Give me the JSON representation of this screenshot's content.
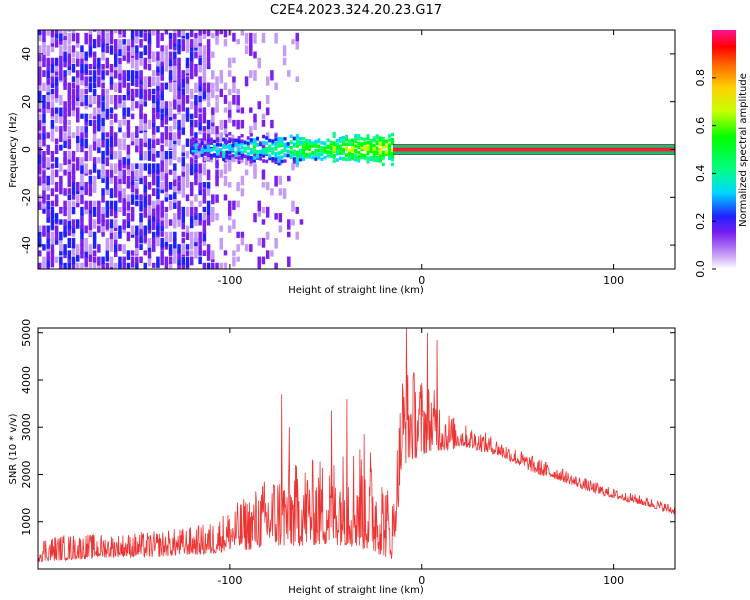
{
  "title": "C2E4.2023.324.20.23.G17",
  "chart_data": [
    {
      "type": "heatmap",
      "xlabel": "Height of straight line (km)",
      "ylabel": "Frequency (Hz)",
      "xlim": [
        -200,
        132
      ],
      "ylim": [
        -50,
        50
      ],
      "xticks": [
        -100,
        0,
        100
      ],
      "yticks": [
        -40,
        -20,
        0,
        20,
        40
      ],
      "colorbar": {
        "label": "Normalized spectral amplitude",
        "range": [
          0,
          1
        ],
        "ticks": [
          "0.0",
          "0.2",
          "0.4",
          "0.6",
          "0.8"
        ],
        "colors": [
          "#ffffff",
          "#c59cf5",
          "#7a1ff0",
          "#2020ff",
          "#00d8ff",
          "#00ff80",
          "#00ff00",
          "#c8ff00",
          "#ffd000",
          "#ff6000",
          "#ff0000",
          "#ff1493"
        ]
      },
      "noise_region_x": [
        -200,
        -110
      ],
      "signal_onset_x": -120,
      "signal_solid_from_x": -15,
      "signal_frequency": 0,
      "grid": false
    },
    {
      "type": "line",
      "xlabel": "Height of straight line (km)",
      "ylabel": "SNR (10 * v/v)",
      "xlim": [
        -200,
        132
      ],
      "ylim": [
        0,
        5100
      ],
      "xticks": [
        -100,
        0,
        100
      ],
      "yticks": [
        1000,
        2000,
        3000,
        4000,
        5000
      ],
      "color": "#ee3333",
      "envelope": {
        "x": [
          -200,
          -180,
          -160,
          -140,
          -120,
          -110,
          -100,
          -90,
          -80,
          -70,
          -60,
          -50,
          -40,
          -30,
          -22,
          -15,
          -10,
          -5,
          0,
          5,
          10,
          15,
          20,
          30,
          40,
          50,
          60,
          70,
          80,
          90,
          100,
          110,
          120,
          132
        ],
        "low": [
          150,
          200,
          250,
          250,
          300,
          300,
          400,
          400,
          500,
          450,
          500,
          500,
          500,
          400,
          300,
          200,
          2200,
          2300,
          2400,
          2500,
          2500,
          2500,
          2600,
          2500,
          2400,
          2200,
          2000,
          1900,
          1750,
          1600,
          1500,
          1400,
          1300,
          1150
        ],
        "high": [
          700,
          750,
          750,
          800,
          900,
          1000,
          1300,
          1600,
          2000,
          2200,
          2300,
          2400,
          2600,
          2900,
          2300,
          1500,
          4300,
          4300,
          4100,
          3900,
          3600,
          3300,
          3100,
          2950,
          2750,
          2550,
          2350,
          2200,
          2000,
          1850,
          1700,
          1600,
          1500,
          1350
        ]
      },
      "peaks": [
        {
          "x": -73,
          "y": 3700
        },
        {
          "x": -69,
          "y": 3000
        },
        {
          "x": -47,
          "y": 3350
        },
        {
          "x": -39,
          "y": 3600
        },
        {
          "x": -8,
          "y": 5100
        },
        {
          "x": 3,
          "y": 5000
        },
        {
          "x": 8,
          "y": 4850
        }
      ],
      "grid": false
    }
  ]
}
